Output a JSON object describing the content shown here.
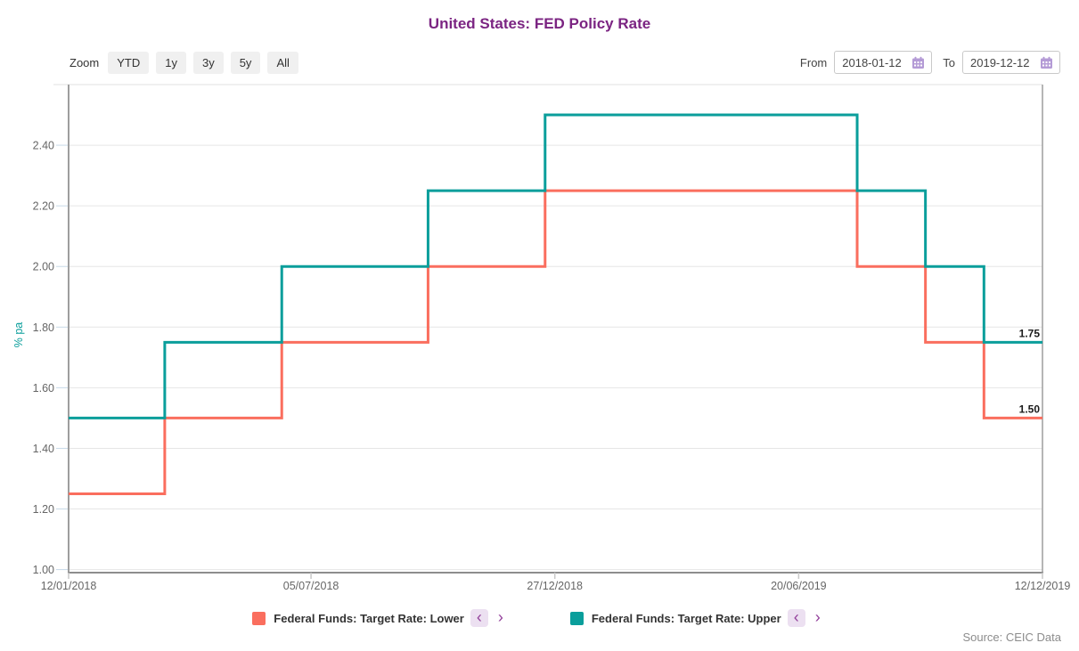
{
  "header": {
    "title": "United States: FED Policy Rate"
  },
  "toolbar": {
    "zoom_label": "Zoom",
    "zoom_buttons": [
      "YTD",
      "1y",
      "3y",
      "5y",
      "All"
    ],
    "from_label": "From",
    "from_value": "2018-01-12",
    "to_label": "To",
    "to_value": "2019-12-12"
  },
  "chart_data": {
    "type": "line",
    "subtype": "step",
    "title": "United States: FED Policy Rate",
    "ylabel": "% pa",
    "grid": true,
    "legend_position": "bottom",
    "x_range": [
      "2018-01-12",
      "2019-12-12"
    ],
    "ylim": [
      0.99,
      2.6
    ],
    "y_ticks": [
      1.0,
      1.2,
      1.4,
      1.6,
      1.8,
      2.0,
      2.2,
      2.4
    ],
    "x_ticks": [
      {
        "date": "2018-01-12",
        "label": "12/01/2018"
      },
      {
        "date": "2018-07-05",
        "label": "05/07/2018"
      },
      {
        "date": "2018-12-27",
        "label": "27/12/2018"
      },
      {
        "date": "2019-06-20",
        "label": "20/06/2019"
      },
      {
        "date": "2019-12-12",
        "label": "12/12/2019"
      }
    ],
    "series": [
      {
        "name": "Federal Funds: Target Rate: Lower",
        "color": "#fa6e5e",
        "end_label": "1.50",
        "points": [
          [
            "2018-01-12",
            1.25
          ],
          [
            "2018-03-22",
            1.5
          ],
          [
            "2018-06-14",
            1.75
          ],
          [
            "2018-09-27",
            2.0
          ],
          [
            "2018-12-20",
            2.25
          ],
          [
            "2019-08-01",
            2.0
          ],
          [
            "2019-09-19",
            1.75
          ],
          [
            "2019-10-31",
            1.5
          ],
          [
            "2019-12-12",
            1.5
          ]
        ]
      },
      {
        "name": "Federal Funds: Target Rate: Upper",
        "color": "#0a9e9b",
        "end_label": "1.75",
        "points": [
          [
            "2018-01-12",
            1.5
          ],
          [
            "2018-03-22",
            1.75
          ],
          [
            "2018-06-14",
            2.0
          ],
          [
            "2018-09-27",
            2.25
          ],
          [
            "2018-12-20",
            2.5
          ],
          [
            "2019-08-01",
            2.25
          ],
          [
            "2019-09-19",
            2.0
          ],
          [
            "2019-10-31",
            1.75
          ],
          [
            "2019-12-12",
            1.75
          ]
        ]
      }
    ]
  },
  "legend": {
    "items": [
      {
        "label": "Federal Funds: Target Rate: Lower",
        "color": "#fa6e5e"
      },
      {
        "label": "Federal Funds: Target Rate: Upper",
        "color": "#0a9e9b"
      }
    ],
    "prev_arrow": "‹",
    "next_arrow": "›"
  },
  "footer": {
    "source": "Source: CEIC Data"
  },
  "colors": {
    "title": "#7b2482",
    "grid": "#e6e6e6",
    "axis": "#9e9e9e",
    "axis_bottom": "#8d8d8d",
    "tick_y": "#c7d9e8",
    "tick_x": "#c9c9c9",
    "axis_label": "#666666",
    "ylabel": "#0a9e9b",
    "end_label": "#1a1a1a"
  }
}
